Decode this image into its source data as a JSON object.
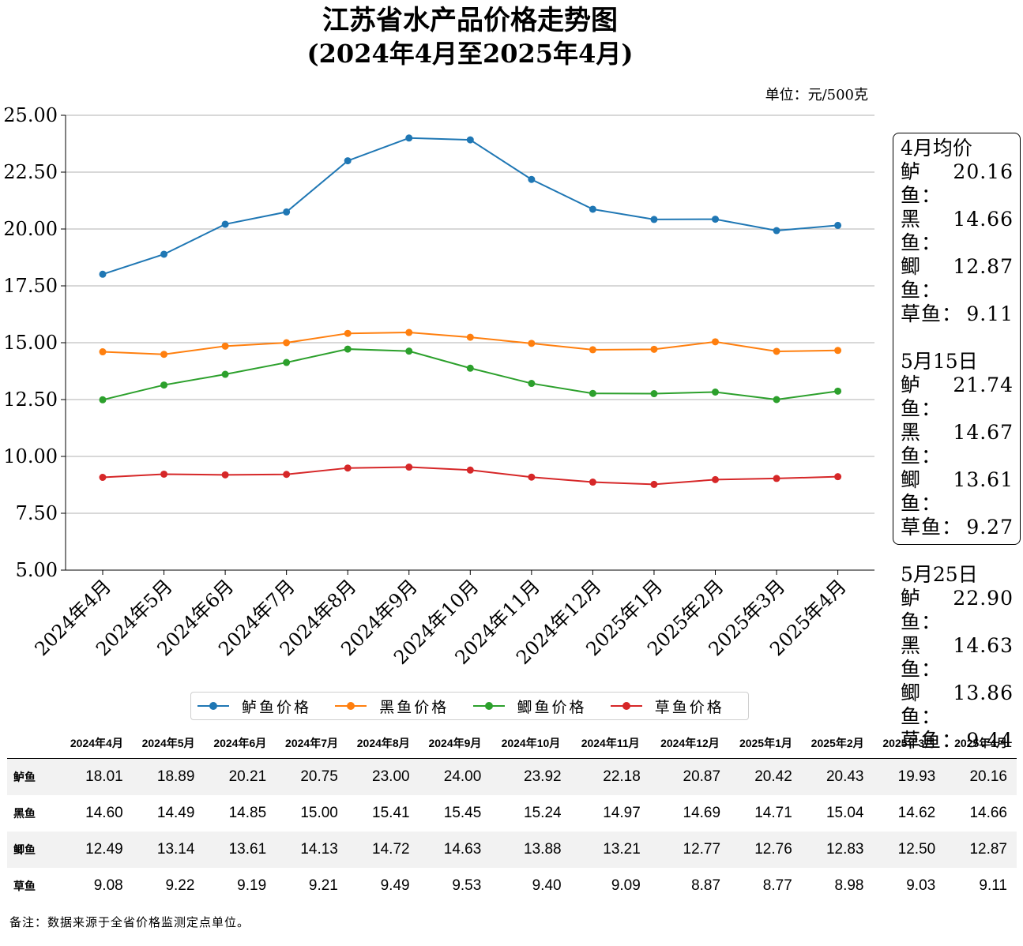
{
  "title_line1": "江苏省水产品价格走势图",
  "title_line2": "(2024年4月至2025年4月)",
  "unit": "单位：元/500克",
  "chart_data": {
    "type": "line",
    "categories": [
      "2024年4月",
      "2024年5月",
      "2024年6月",
      "2024年7月",
      "2024年8月",
      "2024年9月",
      "2024年10月",
      "2024年11月",
      "2024年12月",
      "2025年1月",
      "2025年2月",
      "2025年3月",
      "2025年4月"
    ],
    "ylim": [
      5.0,
      25.0
    ],
    "yticks": [
      "5.00",
      "7.50",
      "10.00",
      "12.50",
      "15.00",
      "17.50",
      "20.00",
      "22.50",
      "25.00"
    ],
    "grid": "horizontal",
    "legend_position": "bottom",
    "series": [
      {
        "name": "鲈鱼价格",
        "color": "#1f77b4",
        "values": [
          18.01,
          18.89,
          20.21,
          20.75,
          23.0,
          24.0,
          23.92,
          22.18,
          20.87,
          20.42,
          20.43,
          19.93,
          20.16
        ]
      },
      {
        "name": "黑鱼价格",
        "color": "#ff7f0e",
        "values": [
          14.6,
          14.49,
          14.85,
          15.0,
          15.41,
          15.45,
          15.24,
          14.97,
          14.69,
          14.71,
          15.04,
          14.62,
          14.66
        ]
      },
      {
        "name": "鲫鱼价格",
        "color": "#2ca02c",
        "values": [
          12.49,
          13.14,
          13.61,
          14.13,
          14.72,
          14.63,
          13.88,
          13.21,
          12.77,
          12.76,
          12.83,
          12.5,
          12.87
        ]
      },
      {
        "name": "草鱼价格",
        "color": "#d62728",
        "values": [
          9.08,
          9.22,
          9.19,
          9.21,
          9.49,
          9.53,
          9.4,
          9.09,
          8.87,
          8.77,
          8.98,
          9.03,
          9.11
        ]
      }
    ]
  },
  "annotation_box": [
    {
      "heading": "4月均价",
      "rows": [
        {
          "label": "鲈鱼：",
          "value": "20.16"
        },
        {
          "label": "黑鱼：",
          "value": "14.66"
        },
        {
          "label": "鲫鱼：",
          "value": "12.87"
        },
        {
          "label": "草鱼：",
          "value": "9.11"
        }
      ]
    },
    {
      "heading": "5月15日",
      "rows": [
        {
          "label": "鲈鱼：",
          "value": "21.74"
        },
        {
          "label": "黑鱼：",
          "value": "14.67"
        },
        {
          "label": "鲫鱼：",
          "value": "13.61"
        },
        {
          "label": "草鱼：",
          "value": "9.27"
        }
      ]
    },
    {
      "heading": "5月25日",
      "rows": [
        {
          "label": "鲈鱼：",
          "value": "22.90"
        },
        {
          "label": "黑鱼：",
          "value": "14.63"
        },
        {
          "label": "鲫鱼：",
          "value": "13.86"
        },
        {
          "label": "草鱼：",
          "value": "9.44"
        }
      ]
    }
  ],
  "table": {
    "columns": [
      "2024年4月",
      "2024年5月",
      "2024年6月",
      "2024年7月",
      "2024年8月",
      "2024年9月",
      "2024年10月",
      "2024年11月",
      "2024年12月",
      "2025年1月",
      "2025年2月",
      "2025年3月",
      "2025年4月"
    ],
    "rows": [
      {
        "label": "鲈鱼",
        "cells": [
          "18.01",
          "18.89",
          "20.21",
          "20.75",
          "23.00",
          "24.00",
          "23.92",
          "22.18",
          "20.87",
          "20.42",
          "20.43",
          "19.93",
          "20.16"
        ]
      },
      {
        "label": "黑鱼",
        "cells": [
          "14.60",
          "14.49",
          "14.85",
          "15.00",
          "15.41",
          "15.45",
          "15.24",
          "14.97",
          "14.69",
          "14.71",
          "15.04",
          "14.62",
          "14.66"
        ]
      },
      {
        "label": "鲫鱼",
        "cells": [
          "12.49",
          "13.14",
          "13.61",
          "14.13",
          "14.72",
          "14.63",
          "13.88",
          "13.21",
          "12.77",
          "12.76",
          "12.83",
          "12.50",
          "12.87"
        ]
      },
      {
        "label": "草鱼",
        "cells": [
          "9.08",
          "9.22",
          "9.19",
          "9.21",
          "9.49",
          "9.53",
          "9.40",
          "9.09",
          "8.87",
          "8.77",
          "8.98",
          "9.03",
          "9.11"
        ]
      }
    ]
  },
  "note": "备注：数据来源于全省价格监测定点单位。"
}
